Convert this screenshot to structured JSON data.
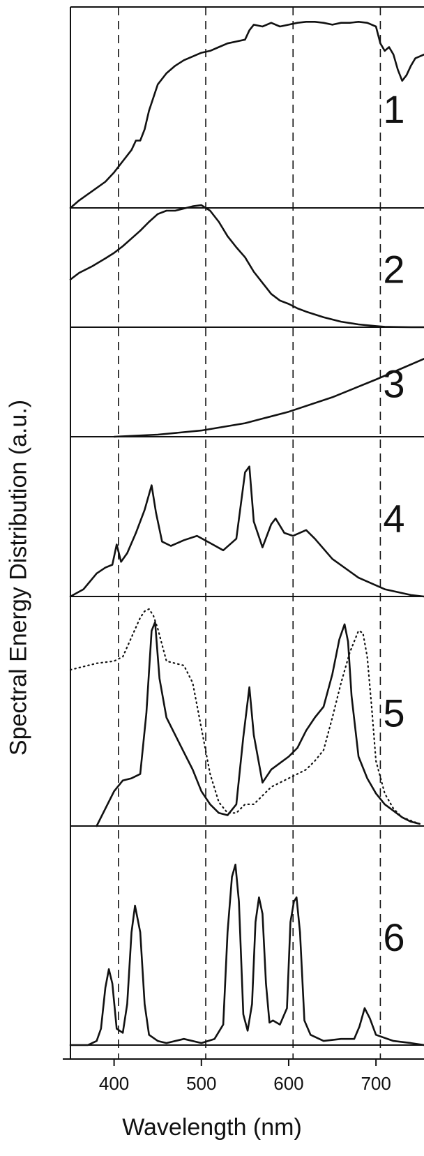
{
  "chart_data": {
    "type": "line",
    "ylabel": "Spectral Energy Distribution  (a.u.)",
    "xlabel": "Wavelength  (nm)",
    "x_ticks": [
      400,
      500,
      600,
      700
    ],
    "xlim": [
      350,
      755
    ],
    "reference_lines_nm": [
      405,
      505,
      605,
      705
    ],
    "grid": false,
    "panels": [
      {
        "label": "1",
        "series": [
          {
            "style": "solid",
            "x": [
              350,
              360,
              375,
              390,
              400,
              410,
              420,
              425,
              430,
              435,
              440,
              450,
              460,
              470,
              480,
              490,
              500,
              510,
              520,
              530,
              540,
              550,
              555,
              560,
              570,
              580,
              590,
              600,
              610,
              620,
              630,
              640,
              650,
              660,
              670,
              680,
              690,
              700,
              705,
              710,
              715,
              720,
              725,
              730,
              735,
              740,
              745,
              755
            ],
            "y": [
              0.0,
              0.04,
              0.09,
              0.14,
              0.19,
              0.25,
              0.31,
              0.36,
              0.36,
              0.42,
              0.52,
              0.66,
              0.72,
              0.76,
              0.79,
              0.81,
              0.83,
              0.84,
              0.86,
              0.88,
              0.89,
              0.9,
              0.95,
              0.98,
              0.97,
              0.99,
              0.97,
              0.98,
              0.99,
              0.995,
              0.995,
              0.99,
              0.98,
              0.99,
              0.99,
              0.995,
              0.99,
              0.97,
              0.88,
              0.84,
              0.86,
              0.82,
              0.74,
              0.68,
              0.71,
              0.76,
              0.8,
              0.82
            ]
          }
        ]
      },
      {
        "label": "2",
        "series": [
          {
            "style": "solid",
            "x": [
              350,
              360,
              375,
              390,
              400,
              410,
              420,
              430,
              440,
              450,
              460,
              470,
              480,
              490,
              500,
              510,
              520,
              530,
              540,
              550,
              560,
              570,
              580,
              590,
              600,
              610,
              620,
              640,
              660,
              680,
              700,
              710,
              720,
              740,
              755
            ],
            "y": [
              0.43,
              0.49,
              0.55,
              0.62,
              0.67,
              0.73,
              0.8,
              0.87,
              0.95,
              1.02,
              1.05,
              1.05,
              1.07,
              1.09,
              1.1,
              1.05,
              0.95,
              0.82,
              0.72,
              0.63,
              0.5,
              0.4,
              0.3,
              0.24,
              0.21,
              0.17,
              0.14,
              0.09,
              0.05,
              0.025,
              0.01,
              0.004,
              0.002,
              0.0,
              0.0
            ]
          }
        ]
      },
      {
        "label": "3",
        "series": [
          {
            "style": "solid",
            "x": [
              400,
              450,
              500,
              550,
              600,
              650,
              700,
              755
            ],
            "y": [
              0.0,
              0.02,
              0.06,
              0.13,
              0.24,
              0.38,
              0.55,
              0.75
            ]
          }
        ]
      },
      {
        "label": "4",
        "series": [
          {
            "style": "solid",
            "x": [
              350,
              365,
              380,
              390,
              398,
              403,
              408,
              415,
              425,
              435,
              443,
              448,
              455,
              465,
              480,
              495,
              510,
              525,
              540,
              550,
              555,
              560,
              570,
              580,
              585,
              595,
              605,
              620,
              630,
              650,
              680,
              710,
              740,
              755
            ],
            "y": [
              0.0,
              0.05,
              0.16,
              0.2,
              0.22,
              0.36,
              0.24,
              0.3,
              0.44,
              0.6,
              0.77,
              0.58,
              0.38,
              0.35,
              0.39,
              0.42,
              0.37,
              0.32,
              0.4,
              0.86,
              0.9,
              0.52,
              0.34,
              0.5,
              0.54,
              0.44,
              0.42,
              0.46,
              0.4,
              0.26,
              0.13,
              0.05,
              0.01,
              0.0
            ]
          }
        ]
      },
      {
        "label": "5",
        "series": [
          {
            "style": "solid",
            "x": [
              380,
              390,
              400,
              410,
              420,
              430,
              437,
              443,
              447,
              452,
              460,
              470,
              480,
              490,
              500,
              510,
              520,
              530,
              540,
              548,
              555,
              560,
              570,
              580,
              590,
              600,
              610,
              620,
              630,
              640,
              650,
              658,
              664,
              668,
              672,
              680,
              690,
              700,
              710,
              720,
              730,
              740,
              750
            ],
            "y": [
              0.0,
              0.08,
              0.16,
              0.21,
              0.22,
              0.24,
              0.52,
              0.9,
              0.94,
              0.68,
              0.5,
              0.42,
              0.34,
              0.26,
              0.16,
              0.1,
              0.06,
              0.05,
              0.1,
              0.41,
              0.64,
              0.42,
              0.2,
              0.26,
              0.29,
              0.32,
              0.36,
              0.44,
              0.5,
              0.55,
              0.7,
              0.86,
              0.93,
              0.85,
              0.6,
              0.32,
              0.22,
              0.15,
              0.1,
              0.07,
              0.04,
              0.02,
              0.01
            ]
          },
          {
            "style": "dotted",
            "x": [
              350,
              360,
              380,
              400,
              410,
              420,
              430,
              435,
              440,
              445,
              450,
              460,
              470,
              480,
              490,
              500,
              510,
              520,
              530,
              540,
              550,
              560,
              570,
              580,
              590,
              600,
              610,
              620,
              630,
              640,
              650,
              660,
              670,
              680,
              685,
              690,
              695,
              700,
              710,
              720,
              730,
              750
            ],
            "y": [
              0.72,
              0.73,
              0.75,
              0.76,
              0.78,
              0.87,
              0.96,
              0.99,
              1.0,
              0.97,
              0.91,
              0.76,
              0.75,
              0.74,
              0.66,
              0.45,
              0.24,
              0.11,
              0.06,
              0.06,
              0.1,
              0.1,
              0.14,
              0.18,
              0.2,
              0.22,
              0.24,
              0.26,
              0.3,
              0.35,
              0.5,
              0.66,
              0.8,
              0.9,
              0.89,
              0.78,
              0.55,
              0.3,
              0.15,
              0.08,
              0.04,
              0.01
            ]
          }
        ]
      },
      {
        "label": "6",
        "series": [
          {
            "style": "solid",
            "x": [
              350,
              370,
              380,
              385,
              390,
              394,
              398,
              403,
              410,
              415,
              420,
              424,
              430,
              435,
              440,
              450,
              460,
              480,
              500,
              515,
              525,
              530,
              535,
              539,
              543,
              548,
              553,
              558,
              562,
              566,
              570,
              574,
              578,
              582,
              590,
              598,
              602,
              606,
              609,
              613,
              618,
              625,
              640,
              660,
              675,
              681,
              687,
              693,
              700,
              720,
              740,
              755
            ],
            "y": [
              0.0,
              0.0,
              0.02,
              0.08,
              0.28,
              0.37,
              0.3,
              0.08,
              0.06,
              0.2,
              0.55,
              0.68,
              0.55,
              0.2,
              0.05,
              0.02,
              0.01,
              0.03,
              0.01,
              0.03,
              0.1,
              0.55,
              0.82,
              0.88,
              0.7,
              0.15,
              0.07,
              0.2,
              0.6,
              0.72,
              0.64,
              0.3,
              0.11,
              0.12,
              0.1,
              0.18,
              0.6,
              0.7,
              0.72,
              0.55,
              0.12,
              0.05,
              0.02,
              0.03,
              0.03,
              0.09,
              0.18,
              0.13,
              0.05,
              0.02,
              0.01,
              0.0
            ]
          }
        ]
      }
    ]
  }
}
